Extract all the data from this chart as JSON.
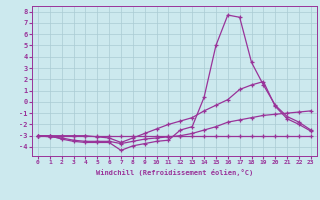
{
  "xlabel": "Windchill (Refroidissement éolien,°C)",
  "background_color": "#cce9ee",
  "grid_color": "#aaccd4",
  "line_color": "#993399",
  "x_values": [
    0,
    1,
    2,
    3,
    4,
    5,
    6,
    7,
    8,
    9,
    10,
    11,
    12,
    13,
    14,
    15,
    16,
    17,
    18,
    19,
    20,
    21,
    22,
    23
  ],
  "curve1": [
    -3.0,
    -3.0,
    -3.3,
    -3.5,
    -3.6,
    -3.6,
    -3.6,
    -4.3,
    -3.9,
    -3.7,
    -3.5,
    -3.4,
    -2.5,
    -2.2,
    0.4,
    5.0,
    7.7,
    7.5,
    3.5,
    1.5,
    -0.3,
    -1.3,
    -1.8,
    -2.5
  ],
  "curve2": [
    -3.0,
    -3.0,
    -3.0,
    -3.0,
    -3.0,
    -3.1,
    -3.2,
    -3.6,
    -3.2,
    -2.8,
    -2.4,
    -2.0,
    -1.7,
    -1.4,
    -0.8,
    -0.3,
    0.2,
    1.1,
    1.5,
    1.8,
    -0.4,
    -1.5,
    -2.0,
    -2.6
  ],
  "curve3": [
    -3.0,
    -3.1,
    -3.2,
    -3.4,
    -3.5,
    -3.5,
    -3.5,
    -3.7,
    -3.5,
    -3.3,
    -3.2,
    -3.1,
    -3.0,
    -2.8,
    -2.5,
    -2.2,
    -1.8,
    -1.6,
    -1.4,
    -1.2,
    -1.1,
    -1.0,
    -0.9,
    -0.8
  ],
  "curve4": [
    -3.0,
    -3.0,
    -3.0,
    -3.0,
    -3.0,
    -3.0,
    -3.0,
    -3.0,
    -3.0,
    -3.0,
    -3.0,
    -3.0,
    -3.0,
    -3.0,
    -3.0,
    -3.0,
    -3.0,
    -3.0,
    -3.0,
    -3.0,
    -3.0,
    -3.0,
    -3.0,
    -3.0
  ],
  "ylim": [
    -4.8,
    8.5
  ],
  "xlim": [
    -0.5,
    23.5
  ],
  "yticks": [
    -4,
    -3,
    -2,
    -1,
    0,
    1,
    2,
    3,
    4,
    5,
    6,
    7,
    8
  ],
  "xticks": [
    0,
    1,
    2,
    3,
    4,
    5,
    6,
    7,
    8,
    9,
    10,
    11,
    12,
    13,
    14,
    15,
    16,
    17,
    18,
    19,
    20,
    21,
    22,
    23
  ]
}
